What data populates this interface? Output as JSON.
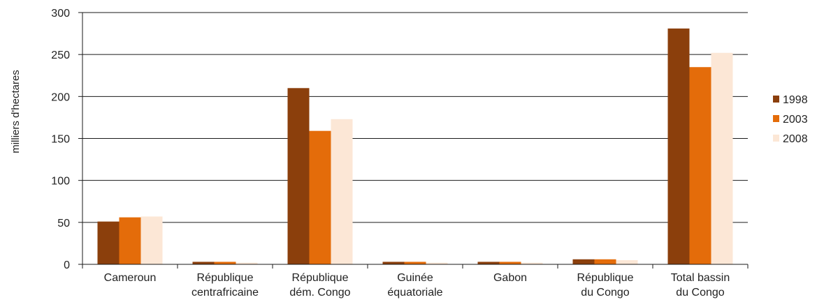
{
  "chart_data": {
    "type": "bar",
    "title": "",
    "xlabel": "",
    "ylabel": "milliers d'hectares",
    "ylim": [
      0,
      300
    ],
    "yticks": [
      0,
      50,
      100,
      150,
      200,
      250,
      300
    ],
    "grid": true,
    "legend_position": "right",
    "categories": [
      [
        "Cameroun"
      ],
      [
        "République",
        "centrafricaine"
      ],
      [
        "République",
        "dém. Congo"
      ],
      [
        "Guinée",
        "équatoriale"
      ],
      [
        "Gabon"
      ],
      [
        "République",
        "du Congo"
      ],
      [
        "Total bassin",
        "du Congo"
      ]
    ],
    "series": [
      {
        "name": "1998",
        "color": "#8B3F0C",
        "values": [
          51,
          3,
          210,
          3,
          3,
          6,
          281
        ]
      },
      {
        "name": "2003",
        "color": "#E46C0A",
        "values": [
          56,
          3,
          159,
          3,
          3,
          6,
          235
        ]
      },
      {
        "name": "2008",
        "color": "#FCE7D6",
        "values": [
          57,
          2,
          173,
          2,
          2,
          5,
          252
        ]
      }
    ]
  }
}
